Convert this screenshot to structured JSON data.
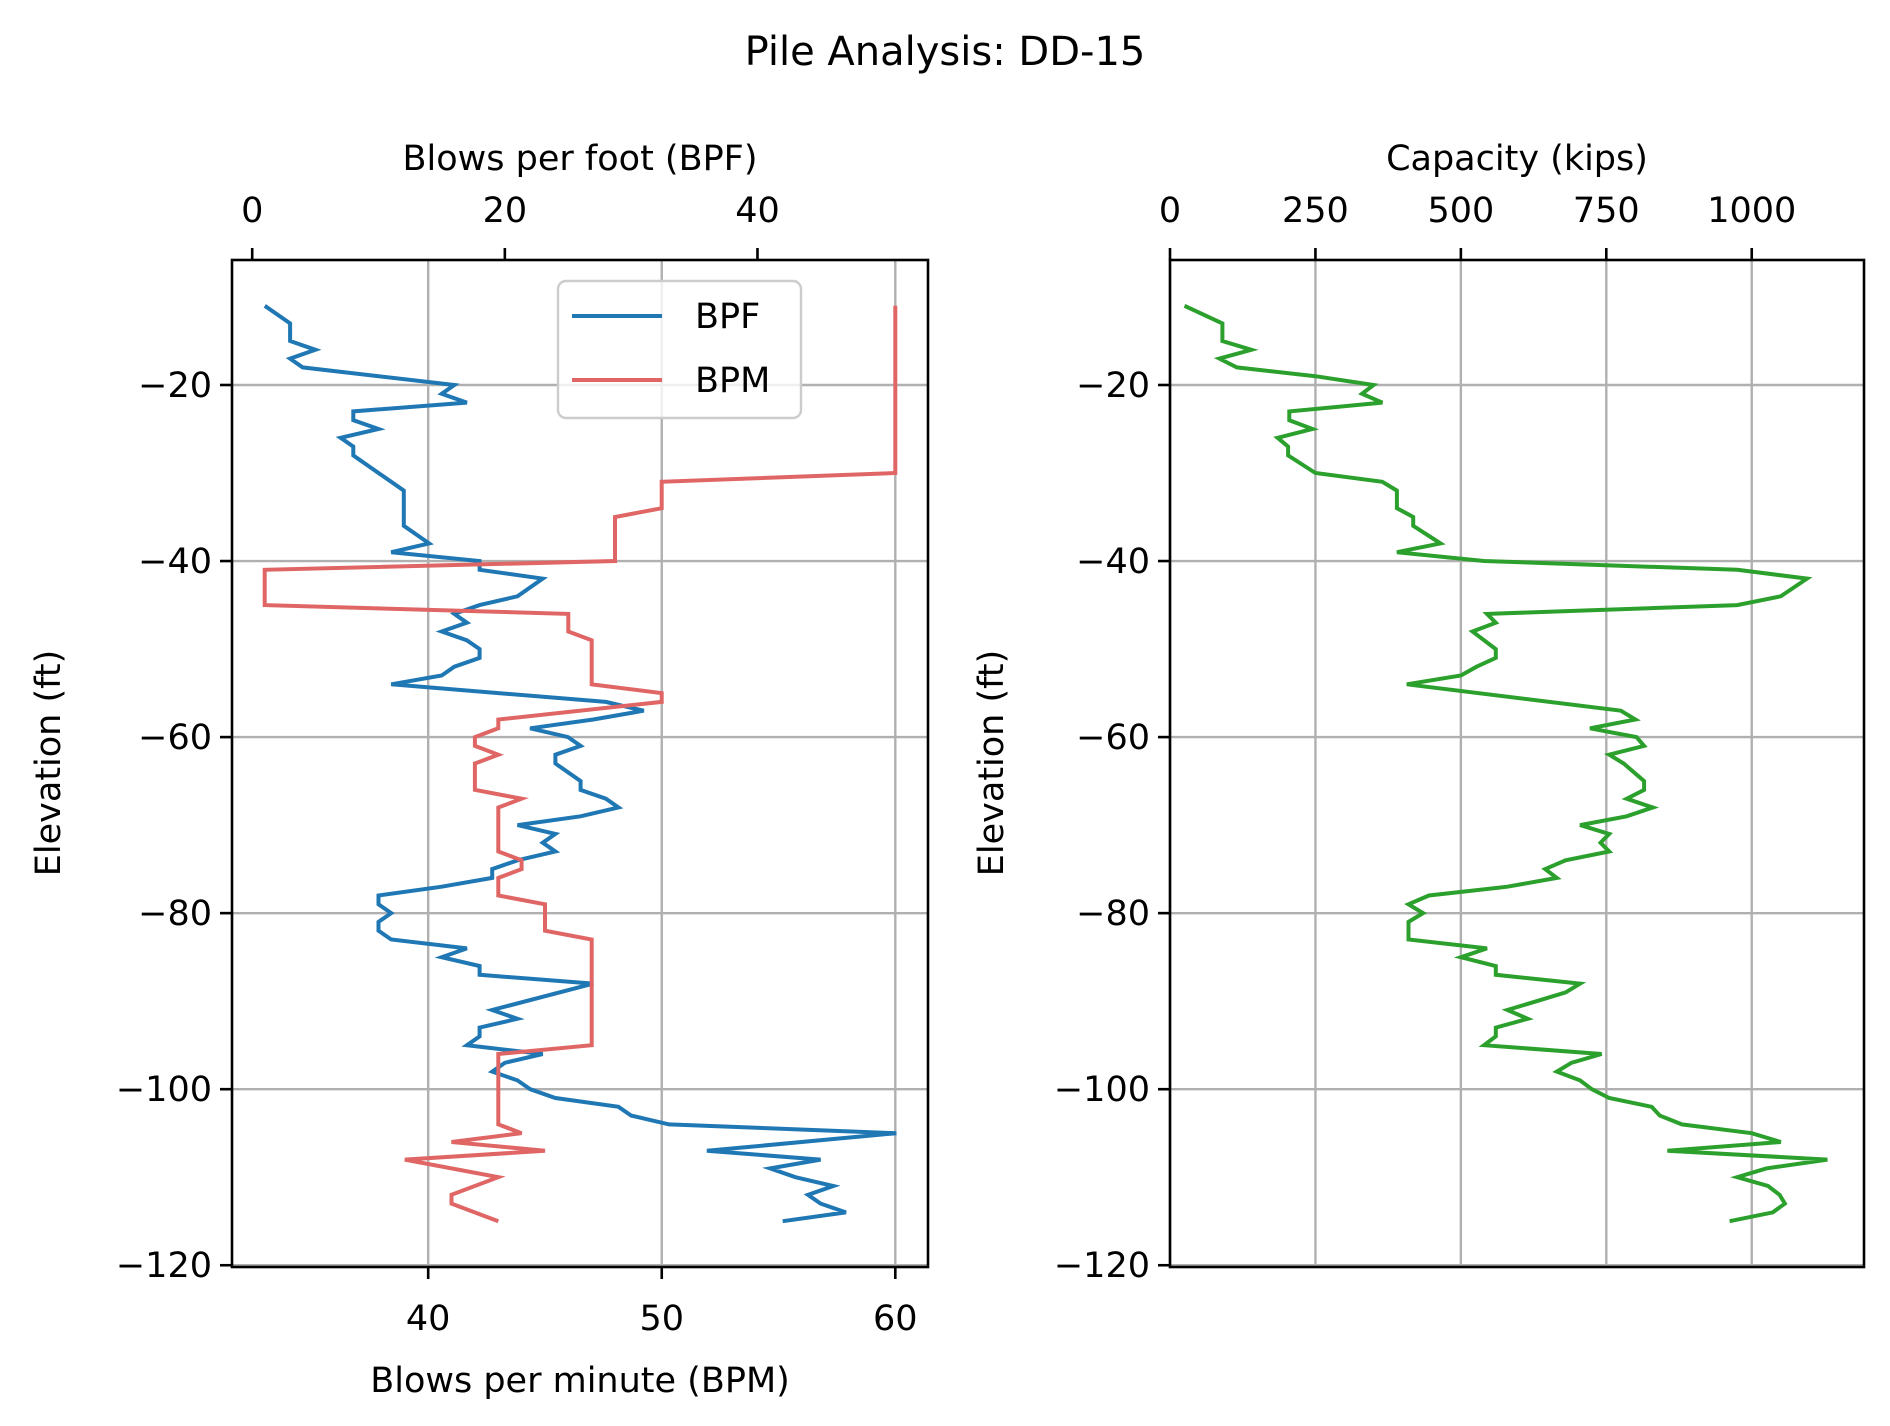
{
  "chart_data": [
    {
      "type": "line",
      "title": "Pile Analysis: DD-15",
      "panel": "left",
      "ylabel": "Elevation (ft)",
      "ylim": [
        -120.2,
        -5.8
      ],
      "yticks": [
        -20,
        -40,
        -60,
        -80,
        -100,
        -120
      ],
      "ytick_labels": [
        "−20",
        "−40",
        "−60",
        "−80",
        "−100",
        "−120"
      ],
      "grid": true,
      "legend": {
        "placement": "top-center",
        "entries": [
          "BPF",
          "BPM"
        ]
      },
      "x_axes": {
        "top": {
          "label": "Blows per foot (BPF)",
          "xlim": [
            -1.6,
            53.5
          ],
          "ticks": [
            0,
            20,
            40
          ],
          "tick_labels": [
            "0",
            "20",
            "40"
          ]
        },
        "bottom": {
          "label": "Blows per minute (BPM)",
          "xlim": [
            31.6,
            61.4
          ],
          "ticks": [
            40,
            50,
            60
          ],
          "tick_labels": [
            "40",
            "50",
            "60"
          ]
        }
      },
      "series": [
        {
          "name": "BPF",
          "axis": "top",
          "color": "#1f77b4",
          "points": [
            [
              1,
              -11
            ],
            [
              3,
              -13
            ],
            [
              3,
              -15
            ],
            [
              5,
              -16
            ],
            [
              3,
              -17
            ],
            [
              4,
              -18
            ],
            [
              16,
              -20
            ],
            [
              15,
              -21
            ],
            [
              17,
              -22
            ],
            [
              8,
              -23
            ],
            [
              8,
              -24
            ],
            [
              10,
              -25
            ],
            [
              7,
              -26
            ],
            [
              8,
              -27
            ],
            [
              8,
              -28
            ],
            [
              12,
              -32
            ],
            [
              12,
              -36
            ],
            [
              14,
              -38
            ],
            [
              11,
              -39
            ],
            [
              18,
              -40
            ],
            [
              18,
              -41
            ],
            [
              23,
              -42
            ],
            [
              21,
              -44
            ],
            [
              18,
              -45
            ],
            [
              16,
              -46
            ],
            [
              17,
              -47
            ],
            [
              15,
              -48
            ],
            [
              17,
              -49
            ],
            [
              18,
              -50
            ],
            [
              18,
              -51
            ],
            [
              16,
              -52
            ],
            [
              15,
              -53
            ],
            [
              11,
              -54
            ],
            [
              28,
              -56
            ],
            [
              31,
              -57
            ],
            [
              27,
              -58
            ],
            [
              22,
              -59
            ],
            [
              25,
              -60
            ],
            [
              26,
              -61
            ],
            [
              24,
              -62
            ],
            [
              24,
              -63
            ],
            [
              26,
              -65
            ],
            [
              26,
              -66
            ],
            [
              28,
              -67
            ],
            [
              29,
              -68
            ],
            [
              26,
              -69
            ],
            [
              21,
              -70
            ],
            [
              24,
              -71
            ],
            [
              23,
              -72
            ],
            [
              24,
              -73
            ],
            [
              21,
              -74
            ],
            [
              19,
              -75
            ],
            [
              19,
              -76
            ],
            [
              15,
              -77
            ],
            [
              10,
              -78
            ],
            [
              10,
              -79
            ],
            [
              11,
              -80
            ],
            [
              10,
              -81
            ],
            [
              10,
              -82
            ],
            [
              11,
              -83
            ],
            [
              17,
              -84
            ],
            [
              15,
              -85
            ],
            [
              18,
              -86
            ],
            [
              18,
              -87
            ],
            [
              27,
              -88
            ],
            [
              19,
              -91
            ],
            [
              21,
              -92
            ],
            [
              18,
              -93
            ],
            [
              18,
              -94
            ],
            [
              17,
              -95
            ],
            [
              23,
              -96
            ],
            [
              20,
              -97
            ],
            [
              19,
              -98
            ],
            [
              21,
              -99
            ],
            [
              22,
              -100
            ],
            [
              24,
              -101
            ],
            [
              29,
              -102
            ],
            [
              30,
              -103
            ],
            [
              33,
              -104
            ],
            [
              51,
              -105
            ],
            [
              36,
              -107
            ],
            [
              45,
              -108
            ],
            [
              41,
              -109
            ],
            [
              43,
              -110
            ],
            [
              46,
              -111
            ],
            [
              44,
              -112
            ],
            [
              45,
              -113
            ],
            [
              47,
              -114
            ],
            [
              42,
              -115
            ]
          ]
        },
        {
          "name": "BPM",
          "axis": "bottom",
          "color": "#e06666",
          "points": [
            [
              60,
              -11
            ],
            [
              60,
              -30
            ],
            [
              50,
              -31
            ],
            [
              50,
              -34
            ],
            [
              48,
              -35
            ],
            [
              48,
              -40
            ],
            [
              33,
              -41
            ],
            [
              33,
              -45
            ],
            [
              46,
              -46
            ],
            [
              46,
              -48
            ],
            [
              47,
              -49
            ],
            [
              47,
              -54
            ],
            [
              50,
              -55
            ],
            [
              50,
              -56
            ],
            [
              43,
              -58
            ],
            [
              43,
              -59
            ],
            [
              42,
              -60
            ],
            [
              42,
              -61
            ],
            [
              43,
              -62
            ],
            [
              42,
              -63
            ],
            [
              42,
              -66
            ],
            [
              44,
              -67
            ],
            [
              43,
              -68
            ],
            [
              43,
              -73
            ],
            [
              44,
              -74
            ],
            [
              44,
              -75
            ],
            [
              43,
              -76
            ],
            [
              43,
              -78
            ],
            [
              45,
              -79
            ],
            [
              45,
              -82
            ],
            [
              47,
              -83
            ],
            [
              47,
              -95
            ],
            [
              43,
              -96
            ],
            [
              43,
              -104
            ],
            [
              44,
              -105
            ],
            [
              41,
              -106
            ],
            [
              45,
              -107
            ],
            [
              39,
              -108
            ],
            [
              43,
              -110
            ],
            [
              41,
              -112
            ],
            [
              41,
              -113
            ],
            [
              43,
              -115
            ]
          ]
        }
      ]
    },
    {
      "type": "line",
      "panel": "right",
      "ylabel": "Elevation (ft)",
      "ylim": [
        -120.2,
        -5.8
      ],
      "yticks": [
        -20,
        -40,
        -60,
        -80,
        -100,
        -120
      ],
      "ytick_labels": [
        "−20",
        "−40",
        "−60",
        "−80",
        "−100",
        "−120"
      ],
      "grid": true,
      "x_axes": {
        "top": {
          "label": "Capacity (kips)",
          "xlim": [
            0,
            1193
          ],
          "ticks": [
            0,
            250,
            500,
            750,
            1000
          ],
          "tick_labels": [
            "0",
            "250",
            "500",
            "750",
            "1000"
          ]
        }
      },
      "series": [
        {
          "name": "Capacity",
          "axis": "top",
          "color": "#2ca02c",
          "points": [
            [
              25,
              -11
            ],
            [
              90,
              -13
            ],
            [
              90,
              -15
            ],
            [
              140,
              -16
            ],
            [
              85,
              -17
            ],
            [
              115,
              -18
            ],
            [
              250,
              -19
            ],
            [
              350,
              -20
            ],
            [
              330,
              -21
            ],
            [
              365,
              -22
            ],
            [
              205,
              -23
            ],
            [
              205,
              -24
            ],
            [
              245,
              -25
            ],
            [
              185,
              -26
            ],
            [
              203,
              -27
            ],
            [
              203,
              -28
            ],
            [
              250,
              -30
            ],
            [
              365,
              -31
            ],
            [
              390,
              -32
            ],
            [
              390,
              -34
            ],
            [
              418,
              -35
            ],
            [
              418,
              -36
            ],
            [
              465,
              -38
            ],
            [
              390,
              -39
            ],
            [
              540,
              -40
            ],
            [
              975,
              -41
            ],
            [
              1095,
              -42
            ],
            [
              1050,
              -44
            ],
            [
              975,
              -45
            ],
            [
              545,
              -46
            ],
            [
              560,
              -47
            ],
            [
              520,
              -48
            ],
            [
              560,
              -50
            ],
            [
              560,
              -51
            ],
            [
              527,
              -52
            ],
            [
              500,
              -53
            ],
            [
              407,
              -54
            ],
            [
              775,
              -57
            ],
            [
              800,
              -58
            ],
            [
              722,
              -59
            ],
            [
              802,
              -60
            ],
            [
              815,
              -61
            ],
            [
              755,
              -62
            ],
            [
              780,
              -63
            ],
            [
              815,
              -65
            ],
            [
              815,
              -66
            ],
            [
              785,
              -67
            ],
            [
              830,
              -68
            ],
            [
              785,
              -69
            ],
            [
              705,
              -70
            ],
            [
              755,
              -71
            ],
            [
              740,
              -72
            ],
            [
              755,
              -73
            ],
            [
              680,
              -74
            ],
            [
              645,
              -75
            ],
            [
              665,
              -76
            ],
            [
              580,
              -77
            ],
            [
              445,
              -78
            ],
            [
              410,
              -79
            ],
            [
              435,
              -80
            ],
            [
              410,
              -81
            ],
            [
              410,
              -83
            ],
            [
              545,
              -84
            ],
            [
              500,
              -85
            ],
            [
              560,
              -86
            ],
            [
              560,
              -87
            ],
            [
              705,
              -88
            ],
            [
              680,
              -89
            ],
            [
              580,
              -91
            ],
            [
              615,
              -92
            ],
            [
              560,
              -93
            ],
            [
              560,
              -94
            ],
            [
              540,
              -95
            ],
            [
              742,
              -96
            ],
            [
              690,
              -97
            ],
            [
              665,
              -98
            ],
            [
              705,
              -99
            ],
            [
              725,
              -100
            ],
            [
              755,
              -101
            ],
            [
              828,
              -102
            ],
            [
              842,
              -103
            ],
            [
              880,
              -104
            ],
            [
              1000,
              -105
            ],
            [
              1050,
              -106
            ],
            [
              855,
              -107
            ],
            [
              1130,
              -108
            ],
            [
              1025,
              -109
            ],
            [
              975,
              -110
            ],
            [
              1028,
              -111
            ],
            [
              1048,
              -112
            ],
            [
              1057,
              -113
            ],
            [
              1036,
              -114
            ],
            [
              962,
              -115
            ]
          ]
        }
      ]
    }
  ]
}
